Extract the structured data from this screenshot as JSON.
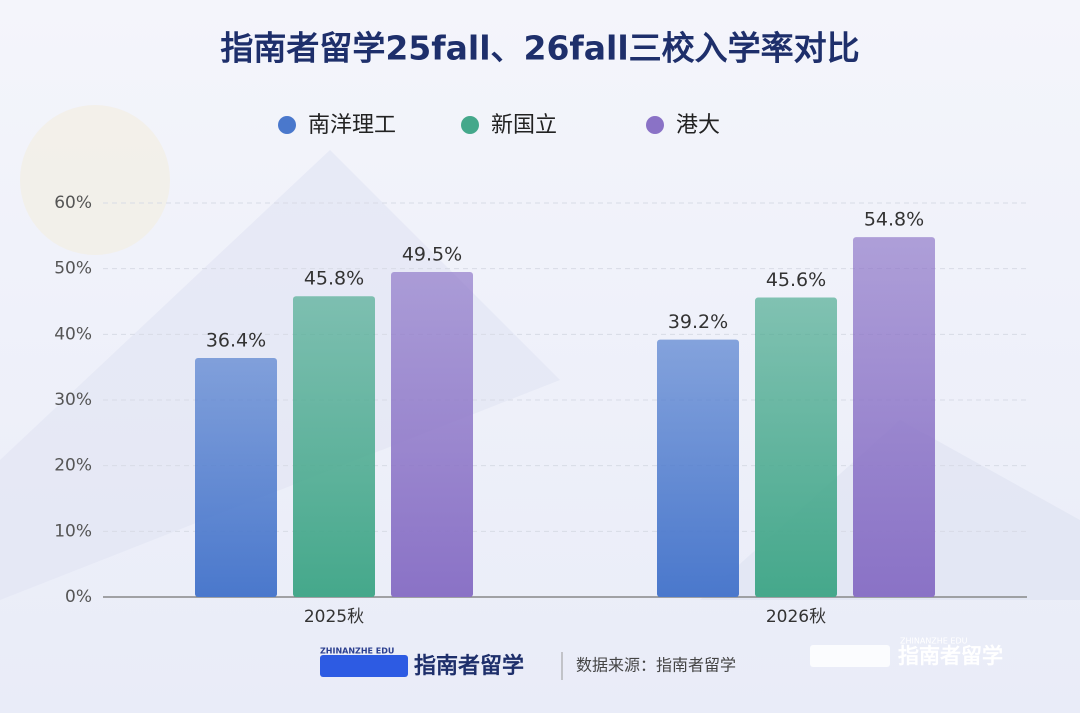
{
  "chart_data": {
    "type": "bar",
    "title": "指南者留学25fall、26fall三校入学率对比",
    "categories": [
      "2025秋",
      "2026秋"
    ],
    "series": [
      {
        "name": "南洋理工",
        "color": "#4a78cc",
        "values": [
          36.4,
          39.2
        ],
        "value_labels": [
          "36.4%",
          "39.2%"
        ]
      },
      {
        "name": "新国立",
        "color": "#45a88b",
        "values": [
          45.8,
          45.6
        ],
        "value_labels": [
          "45.8%",
          "45.6%"
        ]
      },
      {
        "name": "港大",
        "color": "#8a72c6",
        "values": [
          49.5,
          54.8
        ],
        "value_labels": [
          "49.5%",
          "54.8%"
        ]
      }
    ],
    "ylim": [
      0,
      60
    ],
    "yticks": [
      {
        "value": 0,
        "label": "0%"
      },
      {
        "value": 10,
        "label": "10%"
      },
      {
        "value": 20,
        "label": "20%"
      },
      {
        "value": 30,
        "label": "30%"
      },
      {
        "value": 40,
        "label": "40%"
      },
      {
        "value": 50,
        "label": "50%"
      },
      {
        "value": 60,
        "label": "60%"
      }
    ],
    "grid": true,
    "legend": "top"
  },
  "footer": {
    "logo_sub": "ZHINANZHE EDU",
    "logo_name": "指南者留学",
    "source": "数据来源：指南者留学",
    "watermark_sub": "ZHINANZHE EDU",
    "watermark_name": "指南者留学"
  }
}
